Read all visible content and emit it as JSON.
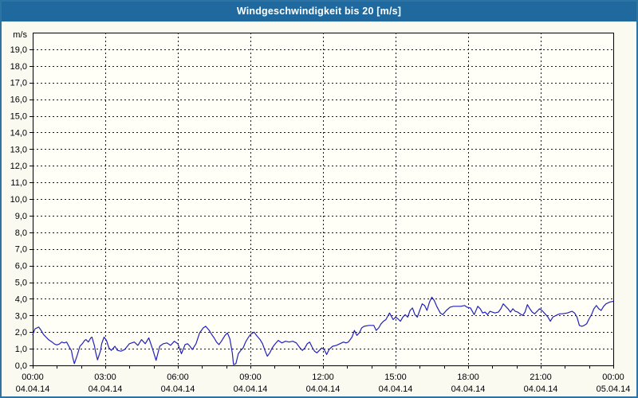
{
  "window": {
    "title": "Windgeschwindigkeit bis 20 [m/s]"
  },
  "colors": {
    "titlebar": "#20699e",
    "window_border": "#2d73a4",
    "background": "#fafaf1",
    "plot_background": "#fffef7",
    "grid": "#1a1a1a",
    "axis": "#000000",
    "series_line": "#2222bb",
    "title_text": "#ffffff"
  },
  "chart_data": {
    "type": "line",
    "title": "Windgeschwindigkeit bis 20 [m/s]",
    "unit_label": "m/s",
    "grid": "dashed",
    "legend": "none",
    "y_axis": {
      "min": 0,
      "max": 20,
      "grid_step": 1,
      "labels": [
        "0,0",
        "1,0",
        "2,0",
        "3,0",
        "4,0",
        "5,0",
        "6,0",
        "7,0",
        "8,0",
        "9,0",
        "10,0",
        "11,0",
        "12,0",
        "13,0",
        "14,0",
        "15,0",
        "16,0",
        "17,0",
        "18,0",
        "19,0"
      ]
    },
    "x_axis": {
      "range_hours": [
        0,
        24
      ],
      "minor_tick_hours": 1,
      "major_tick_hours": 3,
      "ticks": [
        {
          "hour": 0,
          "time": "00:00",
          "date": "04.04.14"
        },
        {
          "hour": 3,
          "time": "03:00",
          "date": "04.04.14"
        },
        {
          "hour": 6,
          "time": "06:00",
          "date": "04.04.14"
        },
        {
          "hour": 9,
          "time": "09:00",
          "date": "04.04.14"
        },
        {
          "hour": 12,
          "time": "12:00",
          "date": "04.04.14"
        },
        {
          "hour": 15,
          "time": "15:00",
          "date": "04.04.14"
        },
        {
          "hour": 18,
          "time": "18:00",
          "date": "04.04.14"
        },
        {
          "hour": 21,
          "time": "21:00",
          "date": "04.04.14"
        },
        {
          "hour": 24,
          "time": "00:00",
          "date": "05.04.14"
        }
      ]
    },
    "series": [
      {
        "name": "Windgeschwindigkeit",
        "color": "#2222bb",
        "points": [
          [
            0,
            1.85
          ],
          [
            0.1,
            2.2
          ],
          [
            0.25,
            2.3
          ],
          [
            0.35,
            2.1
          ],
          [
            0.45,
            1.85
          ],
          [
            0.55,
            1.7
          ],
          [
            0.65,
            1.55
          ],
          [
            0.8,
            1.4
          ],
          [
            0.9,
            1.28
          ],
          [
            1,
            1.23
          ],
          [
            1.1,
            1.28
          ],
          [
            1.2,
            1.4
          ],
          [
            1.3,
            1.35
          ],
          [
            1.4,
            1.4
          ],
          [
            1.55,
            1
          ],
          [
            1.6,
            0.9
          ],
          [
            1.65,
            0.5
          ],
          [
            1.72,
            0.1
          ],
          [
            1.85,
            0.65
          ],
          [
            1.95,
            1.15
          ],
          [
            2.05,
            1.3
          ],
          [
            2.15,
            1.5
          ],
          [
            2.2,
            1.55
          ],
          [
            2.3,
            1.4
          ],
          [
            2.4,
            1.65
          ],
          [
            2.45,
            1.7
          ],
          [
            2.5,
            1.45
          ],
          [
            2.55,
            1.2
          ],
          [
            2.6,
            0.8
          ],
          [
            2.68,
            0.33
          ],
          [
            2.8,
            0.85
          ],
          [
            2.85,
            1.3
          ],
          [
            2.95,
            1.7
          ],
          [
            3.05,
            1.5
          ],
          [
            3.15,
            1.05
          ],
          [
            3.25,
            0.9
          ],
          [
            3.4,
            1.15
          ],
          [
            3.5,
            0.9
          ],
          [
            3.65,
            0.85
          ],
          [
            3.8,
            0.95
          ],
          [
            4,
            1.3
          ],
          [
            4.2,
            1.4
          ],
          [
            4.35,
            1.2
          ],
          [
            4.5,
            1.55
          ],
          [
            4.65,
            1.3
          ],
          [
            4.8,
            1.65
          ],
          [
            4.95,
            1
          ],
          [
            5.1,
            0.3
          ],
          [
            5.25,
            1.15
          ],
          [
            5.4,
            1.3
          ],
          [
            5.55,
            1.35
          ],
          [
            5.7,
            1.2
          ],
          [
            5.85,
            1.45
          ],
          [
            6,
            1.3
          ],
          [
            6.15,
            0.7
          ],
          [
            6.3,
            1.25
          ],
          [
            6.4,
            1.3
          ],
          [
            6.5,
            1.15
          ],
          [
            6.6,
            0.95
          ],
          [
            6.75,
            1.3
          ],
          [
            6.9,
            1.95
          ],
          [
            7.05,
            2.25
          ],
          [
            7.15,
            2.35
          ],
          [
            7.3,
            2.1
          ],
          [
            7.4,
            1.85
          ],
          [
            7.5,
            1.65
          ],
          [
            7.6,
            1.4
          ],
          [
            7.7,
            1.25
          ],
          [
            7.8,
            1.45
          ],
          [
            7.95,
            1.8
          ],
          [
            8.05,
            1.95
          ],
          [
            8.15,
            1.6
          ],
          [
            8.25,
            0.75
          ],
          [
            8.3,
            0.05
          ],
          [
            8.4,
            0.1
          ],
          [
            8.5,
            0.7
          ],
          [
            8.6,
            0.9
          ],
          [
            8.7,
            1.05
          ],
          [
            8.8,
            1.4
          ],
          [
            8.9,
            1.65
          ],
          [
            9,
            1.85
          ],
          [
            9.15,
            2
          ],
          [
            9.25,
            1.8
          ],
          [
            9.4,
            1.55
          ],
          [
            9.5,
            1.3
          ],
          [
            9.6,
            0.9
          ],
          [
            9.7,
            0.55
          ],
          [
            9.8,
            0.75
          ],
          [
            9.9,
            1.05
          ],
          [
            10,
            1.25
          ],
          [
            10.15,
            1.5
          ],
          [
            10.3,
            1.35
          ],
          [
            10.45,
            1.45
          ],
          [
            10.6,
            1.4
          ],
          [
            10.75,
            1.45
          ],
          [
            10.9,
            1.35
          ],
          [
            11.05,
            1.05
          ],
          [
            11.15,
            0.9
          ],
          [
            11.25,
            1.05
          ],
          [
            11.35,
            1.3
          ],
          [
            11.45,
            1.4
          ],
          [
            11.55,
            1.1
          ],
          [
            11.65,
            0.85
          ],
          [
            11.75,
            0.75
          ],
          [
            11.85,
            0.9
          ],
          [
            11.95,
            1.05
          ],
          [
            12.05,
            0.95
          ],
          [
            12.15,
            0.65
          ],
          [
            12.25,
            0.95
          ],
          [
            12.4,
            1.15
          ],
          [
            12.55,
            1.2
          ],
          [
            12.7,
            1.3
          ],
          [
            12.85,
            1.4
          ],
          [
            12.95,
            1.35
          ],
          [
            13.05,
            1.4
          ],
          [
            13.2,
            1.7
          ],
          [
            13.3,
            2.1
          ],
          [
            13.4,
            1.8
          ],
          [
            13.5,
            1.95
          ],
          [
            13.6,
            2.25
          ],
          [
            13.7,
            2.35
          ],
          [
            13.9,
            2.4
          ],
          [
            14.1,
            2.4
          ],
          [
            14.2,
            2.1
          ],
          [
            14.3,
            2.25
          ],
          [
            14.4,
            2.5
          ],
          [
            14.5,
            2.65
          ],
          [
            14.6,
            2.75
          ],
          [
            14.75,
            3.15
          ],
          [
            14.9,
            2.75
          ],
          [
            15,
            2.9
          ],
          [
            15.1,
            2.8
          ],
          [
            15.2,
            2.65
          ],
          [
            15.3,
            2.9
          ],
          [
            15.4,
            3.05
          ],
          [
            15.5,
            2.9
          ],
          [
            15.6,
            3.3
          ],
          [
            15.7,
            3.45
          ],
          [
            15.8,
            3.05
          ],
          [
            15.9,
            2.9
          ],
          [
            16,
            3.3
          ],
          [
            16.1,
            3.7
          ],
          [
            16.2,
            3.6
          ],
          [
            16.3,
            3.3
          ],
          [
            16.4,
            3.8
          ],
          [
            16.5,
            4.1
          ],
          [
            16.6,
            3.9
          ],
          [
            16.7,
            3.55
          ],
          [
            16.85,
            3.15
          ],
          [
            16.95,
            3.05
          ],
          [
            17.1,
            3.3
          ],
          [
            17.25,
            3.5
          ],
          [
            17.4,
            3.55
          ],
          [
            17.55,
            3.55
          ],
          [
            17.7,
            3.55
          ],
          [
            17.85,
            3.6
          ],
          [
            17.95,
            3.5
          ],
          [
            18.1,
            3.45
          ],
          [
            18.25,
            3.05
          ],
          [
            18.4,
            3.55
          ],
          [
            18.5,
            3.4
          ],
          [
            18.6,
            3.15
          ],
          [
            18.7,
            3.2
          ],
          [
            18.8,
            3.05
          ],
          [
            18.9,
            3.25
          ],
          [
            19,
            3.2
          ],
          [
            19.1,
            3.15
          ],
          [
            19.25,
            3.2
          ],
          [
            19.35,
            3.4
          ],
          [
            19.45,
            3.7
          ],
          [
            19.55,
            3.55
          ],
          [
            19.65,
            3.4
          ],
          [
            19.75,
            3.2
          ],
          [
            19.85,
            3.4
          ],
          [
            19.95,
            3.25
          ],
          [
            20.05,
            3.2
          ],
          [
            20.15,
            3.1
          ],
          [
            20.25,
            3
          ],
          [
            20.35,
            3.2
          ],
          [
            20.45,
            3.65
          ],
          [
            20.55,
            3.4
          ],
          [
            20.65,
            3.2
          ],
          [
            20.75,
            3.1
          ],
          [
            20.85,
            3.25
          ],
          [
            20.95,
            3.4
          ],
          [
            21.05,
            3.3
          ],
          [
            21.15,
            3.15
          ],
          [
            21.3,
            2.9
          ],
          [
            21.4,
            2.65
          ],
          [
            21.5,
            2.9
          ],
          [
            21.7,
            3.05
          ],
          [
            21.8,
            3.1
          ],
          [
            21.9,
            3.1
          ],
          [
            22.1,
            3.15
          ],
          [
            22.2,
            3.2
          ],
          [
            22.3,
            3.25
          ],
          [
            22.4,
            3.15
          ],
          [
            22.5,
            2.9
          ],
          [
            22.6,
            2.4
          ],
          [
            22.7,
            2.35
          ],
          [
            22.8,
            2.4
          ],
          [
            22.9,
            2.5
          ],
          [
            23,
            2.8
          ],
          [
            23.1,
            3.05
          ],
          [
            23.2,
            3.4
          ],
          [
            23.3,
            3.6
          ],
          [
            23.4,
            3.4
          ],
          [
            23.5,
            3.3
          ],
          [
            23.6,
            3.55
          ],
          [
            23.7,
            3.7
          ],
          [
            23.85,
            3.8
          ],
          [
            24,
            3.85
          ]
        ]
      }
    ]
  }
}
